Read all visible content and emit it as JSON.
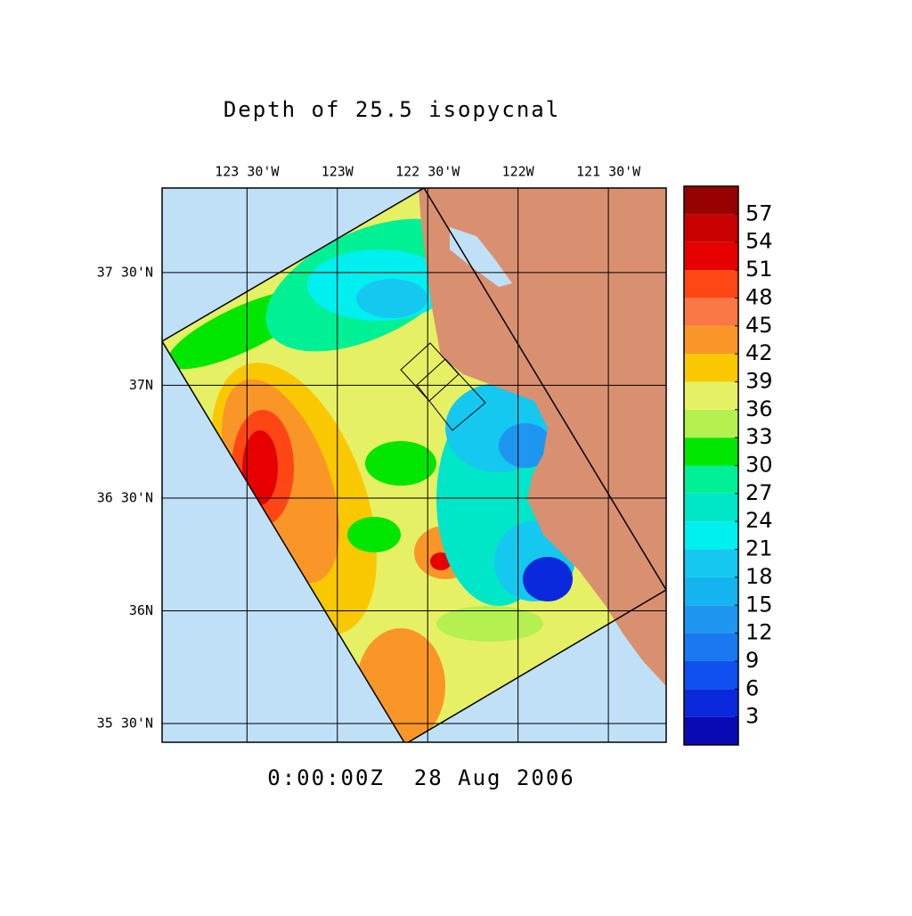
{
  "map": {
    "title": "Depth of 25.5 isopycnal",
    "time_label": "0:00:00Z  28 Aug 2006",
    "xlim": [
      -123.97,
      -121.18
    ],
    "ylim": [
      35.417,
      37.875
    ],
    "lon_ticks": [
      {
        "value": -123.5,
        "label": "123 30'W"
      },
      {
        "value": -123,
        "label": "123W"
      },
      {
        "value": -122.5,
        "label": "122 30'W"
      },
      {
        "value": -122,
        "label": "122W"
      },
      {
        "value": -121.5,
        "label": "121 30'W"
      }
    ],
    "lat_ticks": [
      {
        "value": 37.5,
        "label": "37 30'N"
      },
      {
        "value": 37,
        "label": "37N"
      },
      {
        "value": 36.5,
        "label": "36 30'N"
      },
      {
        "value": 36,
        "label": "36N"
      },
      {
        "value": 35.5,
        "label": "35 30'N"
      }
    ],
    "colorbar": {
      "lim": [
        0,
        60
      ],
      "ticks": [
        3,
        6,
        9,
        12,
        15,
        18,
        21,
        24,
        27,
        30,
        33,
        36,
        39,
        42,
        45,
        48,
        51,
        54,
        57
      ],
      "colors": [
        "#0a0ab4",
        "#0a28dc",
        "#1050f0",
        "#1a78f0",
        "#1e96f0",
        "#14b4f0",
        "#14c8f0",
        "#00f0f0",
        "#00e6c8",
        "#00f096",
        "#00e600",
        "#b4f050",
        "#e6f064",
        "#fac800",
        "#fa9628",
        "#fa7846",
        "#ff4614",
        "#e60000",
        "#c80000",
        "#960000"
      ]
    }
  }
}
